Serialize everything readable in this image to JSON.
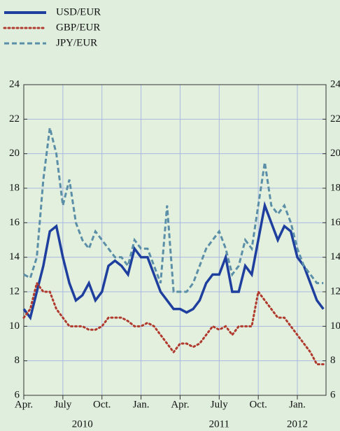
{
  "chart_data": {
    "type": "line",
    "x": [
      0,
      0.5,
      1,
      1.5,
      2,
      2.5,
      3,
      3.5,
      4,
      4.5,
      5,
      5.5,
      6,
      6.5,
      7,
      7.5,
      8,
      8.5,
      9,
      9.5,
      10,
      10.5,
      11,
      11.5,
      12,
      12.5,
      13,
      13.5,
      14,
      14.5,
      15,
      15.5,
      16,
      16.5,
      17,
      17.5,
      18,
      18.5,
      19,
      19.5,
      20,
      20.5,
      21,
      21.5,
      22,
      22.5,
      23
    ],
    "series": [
      {
        "name": "USD/EUR",
        "color": "#1f3f9f",
        "dash": "solid",
        "values": [
          11,
          10.5,
          12,
          13.5,
          15.5,
          15.8,
          14,
          12.5,
          11.5,
          11.8,
          12.5,
          11.5,
          12,
          13.5,
          13.8,
          13.5,
          13,
          14.5,
          14,
          14,
          13,
          12,
          11.5,
          11,
          11,
          10.8,
          11,
          11.5,
          12.5,
          13,
          13,
          14,
          12,
          12,
          13.5,
          13,
          15,
          17,
          16,
          15,
          15.8,
          15.5,
          14,
          13.5,
          12.5,
          11.5,
          11
        ]
      },
      {
        "name": "GBP/EUR",
        "color": "#b03a2e",
        "dash": "dotted",
        "values": [
          10.5,
          11,
          12.5,
          12,
          12,
          11,
          10.5,
          10,
          10,
          10,
          9.8,
          9.8,
          10,
          10.5,
          10.5,
          10.5,
          10.3,
          10,
          10,
          10.2,
          10,
          9.5,
          9,
          8.5,
          9,
          9,
          8.8,
          9,
          9.5,
          10,
          9.8,
          10,
          9.5,
          10,
          10,
          10,
          12,
          11.5,
          11,
          10.5,
          10.5,
          10,
          9.5,
          9,
          8.5,
          7.8,
          7.8
        ]
      },
      {
        "name": "JPY/EUR",
        "color": "#5b8fa8",
        "dash": "dashed",
        "values": [
          13,
          12.8,
          14,
          18.5,
          21.5,
          20,
          17,
          18.5,
          16,
          15,
          14.5,
          15.5,
          15,
          14.5,
          14,
          14,
          13.5,
          15,
          14.5,
          14.5,
          13.5,
          12.5,
          17,
          12,
          12,
          12,
          12.5,
          13.5,
          14.5,
          15,
          15.5,
          14.5,
          13,
          13.5,
          15,
          14.5,
          17,
          19.5,
          17,
          16.5,
          17,
          16,
          14.5,
          13.5,
          13,
          12.5,
          12.5
        ]
      }
    ],
    "xlim": [
      0,
      23.2
    ],
    "xticks": [
      {
        "value": 0,
        "label": "Apr."
      },
      {
        "value": 3,
        "label": "July"
      },
      {
        "value": 6,
        "label": "Oct."
      },
      {
        "value": 9,
        "label": "Jan."
      },
      {
        "value": 12,
        "label": "Apr."
      },
      {
        "value": 15,
        "label": "July"
      },
      {
        "value": 18,
        "label": "Oct."
      },
      {
        "value": 21,
        "label": "Jan."
      }
    ],
    "year_labels": [
      {
        "value": 4.5,
        "label": "2010"
      },
      {
        "value": 15,
        "label": "2011"
      },
      {
        "value": 21,
        "label": "2012"
      }
    ],
    "ylim": [
      6,
      24
    ],
    "yticks": [
      6,
      8,
      10,
      12,
      14,
      16,
      18,
      20,
      22,
      24
    ],
    "y2lim": [
      6,
      24
    ],
    "y2ticks": [
      6,
      8,
      10,
      12,
      14,
      16,
      18,
      20,
      22,
      24
    ],
    "grid": true,
    "legend": "top-left"
  }
}
